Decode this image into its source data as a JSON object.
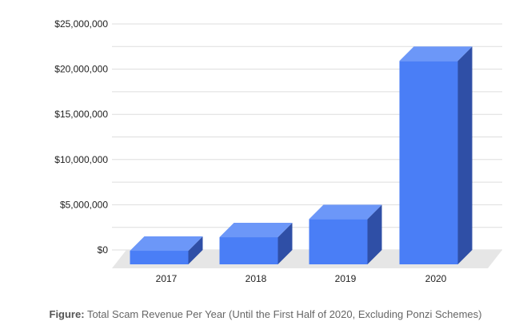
{
  "chart_data": {
    "type": "bar",
    "categories": [
      "2017",
      "2018",
      "2019",
      "2020"
    ],
    "values": [
      1500000,
      3000000,
      5000000,
      22500000
    ],
    "ylim": [
      0,
      25000000
    ],
    "yticks": [
      "$0",
      "$5,000,000",
      "$10,000,000",
      "$15,000,000",
      "$20,000,000",
      "$25,000,000"
    ],
    "ytick_values": [
      0,
      5000000,
      10000000,
      15000000,
      20000000,
      25000000
    ],
    "grid": true,
    "bar_style": "3d",
    "colors": {
      "front": "#4A7EF6",
      "top": "#6C97F8",
      "side": "#2F4FA6",
      "floor": "#E6E6E6",
      "grid": "#DDDDDD"
    }
  },
  "caption": {
    "prefix": "Figure:",
    "text": "Total Scam Revenue Per Year (Until the First Half of 2020, Excluding Ponzi Schemes)"
  }
}
